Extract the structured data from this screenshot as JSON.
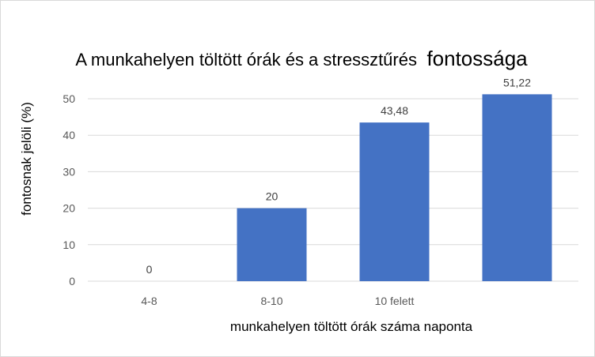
{
  "chart_data": {
    "type": "bar",
    "title_main": "A munkahelyen töltött órák és a stressztűrés",
    "title_tail": "fontossága",
    "xlabel": "munkahelyen töltött órák száma naponta",
    "ylabel": "fontosnak jelöli (%)",
    "categories": [
      "4-8",
      "8-10",
      "10 felett",
      ""
    ],
    "values": [
      0,
      20,
      43.48,
      51.22
    ],
    "data_labels": [
      "0",
      "20",
      "43,48",
      "51,22"
    ],
    "ylim": [
      0,
      50
    ],
    "yticks": [
      0,
      10,
      20,
      30,
      40,
      50
    ],
    "grid": true,
    "bar_color": "#4472c4",
    "grid_color": "#d9d9d9"
  }
}
